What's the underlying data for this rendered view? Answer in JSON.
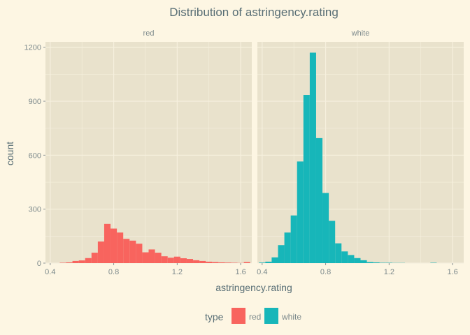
{
  "chart_data": {
    "type": "bar",
    "title": "Distribution of  astringency.rating",
    "xlabel": "astringency.rating",
    "ylabel": "count",
    "xlim": [
      0.37,
      1.67
    ],
    "ylim": [
      0,
      1230
    ],
    "x_ticks": [
      0.4,
      0.8,
      1.2,
      1.6
    ],
    "x_tick_labels": [
      "0.4",
      "0.8",
      "1.2",
      "1.6"
    ],
    "y_ticks": [
      0,
      300,
      600,
      900,
      1200
    ],
    "y_tick_labels": [
      "0",
      "300",
      "600",
      "900",
      "1200"
    ],
    "bin_width": 0.04,
    "panel_background": "#e9e2cc",
    "grid_color": "#f6f0de",
    "legend": {
      "title": "type",
      "position": "bottom"
    },
    "panels": [
      {
        "name": "red",
        "color": "#f8645e",
        "bins": [
          {
            "x": 0.48,
            "y": 2
          },
          {
            "x": 0.52,
            "y": 4
          },
          {
            "x": 0.56,
            "y": 12
          },
          {
            "x": 0.6,
            "y": 15
          },
          {
            "x": 0.64,
            "y": 28
          },
          {
            "x": 0.68,
            "y": 58
          },
          {
            "x": 0.72,
            "y": 120
          },
          {
            "x": 0.76,
            "y": 218
          },
          {
            "x": 0.8,
            "y": 192
          },
          {
            "x": 0.84,
            "y": 170
          },
          {
            "x": 0.88,
            "y": 135
          },
          {
            "x": 0.92,
            "y": 125
          },
          {
            "x": 0.96,
            "y": 108
          },
          {
            "x": 1.0,
            "y": 60
          },
          {
            "x": 1.04,
            "y": 76
          },
          {
            "x": 1.08,
            "y": 58
          },
          {
            "x": 1.12,
            "y": 38
          },
          {
            "x": 1.16,
            "y": 30
          },
          {
            "x": 1.2,
            "y": 36
          },
          {
            "x": 1.24,
            "y": 27
          },
          {
            "x": 1.28,
            "y": 23
          },
          {
            "x": 1.32,
            "y": 16
          },
          {
            "x": 1.36,
            "y": 12
          },
          {
            "x": 1.4,
            "y": 8
          },
          {
            "x": 1.44,
            "y": 6
          },
          {
            "x": 1.48,
            "y": 4
          },
          {
            "x": 1.52,
            "y": 3
          },
          {
            "x": 1.56,
            "y": 2
          },
          {
            "x": 1.6,
            "y": 1
          },
          {
            "x": 1.64,
            "y": 6
          }
        ]
      },
      {
        "name": "white",
        "color": "#17b6b9",
        "bins": [
          {
            "x": 0.4,
            "y": 3
          },
          {
            "x": 0.44,
            "y": 8
          },
          {
            "x": 0.48,
            "y": 32
          },
          {
            "x": 0.52,
            "y": 100
          },
          {
            "x": 0.56,
            "y": 170
          },
          {
            "x": 0.6,
            "y": 265
          },
          {
            "x": 0.64,
            "y": 565
          },
          {
            "x": 0.68,
            "y": 935
          },
          {
            "x": 0.72,
            "y": 1170
          },
          {
            "x": 0.76,
            "y": 695
          },
          {
            "x": 0.8,
            "y": 390
          },
          {
            "x": 0.84,
            "y": 235
          },
          {
            "x": 0.88,
            "y": 110
          },
          {
            "x": 0.92,
            "y": 65
          },
          {
            "x": 0.96,
            "y": 45
          },
          {
            "x": 1.0,
            "y": 28
          },
          {
            "x": 1.04,
            "y": 16
          },
          {
            "x": 1.08,
            "y": 6
          },
          {
            "x": 1.12,
            "y": 4
          },
          {
            "x": 1.16,
            "y": 2
          },
          {
            "x": 1.2,
            "y": 2
          },
          {
            "x": 1.24,
            "y": 1
          },
          {
            "x": 1.28,
            "y": 1
          },
          {
            "x": 1.48,
            "y": 2
          }
        ]
      }
    ]
  }
}
